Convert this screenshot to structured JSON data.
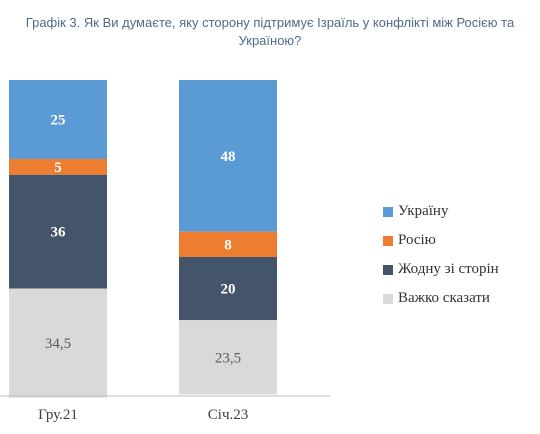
{
  "title": "Графік 3. Як Ви думаєте, яку сторону підтримує Ізраїль у конфлікті між Росією та Україною?",
  "colors": {
    "ukraine": "#5b9bd5",
    "russia": "#ed7d31",
    "neither": "#44546a",
    "hard_to_say": "#d9d9d9"
  },
  "chart_data": {
    "type": "bar",
    "stacked": true,
    "categories": [
      "Гру.21",
      "Січ.23"
    ],
    "series": [
      {
        "name": "Україну",
        "values": [
          25,
          48
        ],
        "labels": [
          "25",
          "48"
        ],
        "color_key": "ukraine"
      },
      {
        "name": "Росію",
        "values": [
          5,
          8
        ],
        "labels": [
          "5",
          "8"
        ],
        "color_key": "russia"
      },
      {
        "name": "Жодну зі сторін",
        "values": [
          36,
          20
        ],
        "labels": [
          "36",
          "20"
        ],
        "color_key": "neither"
      },
      {
        "name": "Важко сказати",
        "values": [
          34.5,
          23.5
        ],
        "labels": [
          "34,5",
          "23,5"
        ],
        "color_key": "hard_to_say"
      }
    ],
    "stack_order": "first series on top",
    "legend_position": "right",
    "grid": false,
    "ylim": [
      0,
      100
    ]
  }
}
